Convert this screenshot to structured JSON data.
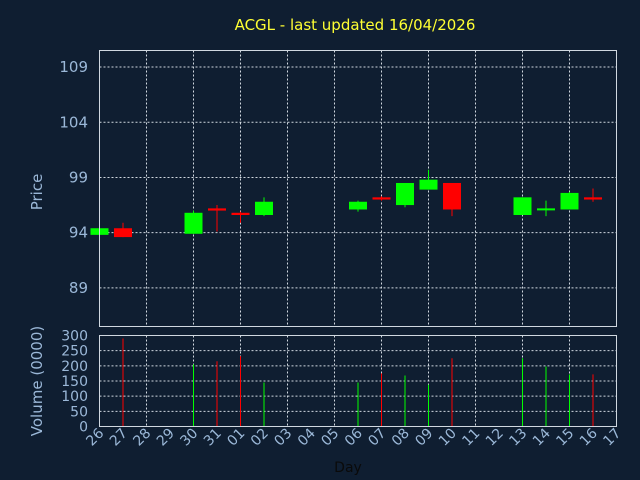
{
  "chart_data": [
    {
      "type": "candlestick",
      "title": "ACGL - last updated 16/04/2026",
      "ylabel": "Price",
      "ylim": [
        85.5,
        110.5
      ],
      "yticks": [
        89,
        94,
        99,
        104,
        109
      ],
      "grid": true,
      "up_color": "#00ff00",
      "down_color": "#ff0000",
      "series": [
        {
          "day": "26",
          "open": 93.8,
          "high": 94.4,
          "low": 93.6,
          "close": 94.4
        },
        {
          "day": "27",
          "open": 94.4,
          "high": 94.9,
          "low": 93.6,
          "close": 93.6
        },
        {
          "day": "30",
          "open": 93.9,
          "high": 96.0,
          "low": 93.9,
          "close": 95.8
        },
        {
          "day": "31",
          "open": 96.2,
          "high": 96.5,
          "low": 94.1,
          "close": 96.0
        },
        {
          "day": "01",
          "open": 95.8,
          "high": 95.9,
          "low": 94.9,
          "close": 95.6
        },
        {
          "day": "02",
          "open": 95.6,
          "high": 97.2,
          "low": 95.5,
          "close": 96.8
        },
        {
          "day": "06",
          "open": 96.1,
          "high": 96.9,
          "low": 95.9,
          "close": 96.8
        },
        {
          "day": "07",
          "open": 97.2,
          "high": 97.3,
          "low": 96.9,
          "close": 97.0
        },
        {
          "day": "08",
          "open": 96.5,
          "high": 98.5,
          "low": 96.3,
          "close": 98.5
        },
        {
          "day": "09",
          "open": 97.9,
          "high": 99.7,
          "low": 97.9,
          "close": 98.8
        },
        {
          "day": "10",
          "open": 98.5,
          "high": 98.5,
          "low": 95.5,
          "close": 96.1
        },
        {
          "day": "13",
          "open": 95.6,
          "high": 97.2,
          "low": 95.6,
          "close": 97.2
        },
        {
          "day": "14",
          "open": 96.2,
          "high": 96.9,
          "low": 95.5,
          "close": 96.2
        },
        {
          "day": "15",
          "open": 96.1,
          "high": 97.7,
          "low": 96.1,
          "close": 97.6
        },
        {
          "day": "16",
          "open": 97.2,
          "high": 98.0,
          "low": 96.8,
          "close": 97.0
        }
      ]
    },
    {
      "type": "bar",
      "ylabel": "Volume (0000)",
      "xlabel": "Day",
      "ylim": [
        0,
        300
      ],
      "yticks": [
        0,
        50,
        100,
        150,
        200,
        250,
        300
      ],
      "categories": [
        "26",
        "27",
        "28",
        "29",
        "30",
        "31",
        "01",
        "02",
        "03",
        "04",
        "05",
        "06",
        "07",
        "08",
        "09",
        "10",
        "11",
        "12",
        "13",
        "14",
        "15",
        "16",
        "17"
      ],
      "xtick_labels": [
        "26",
        "27",
        "28",
        "29",
        "30",
        "31",
        "01",
        "02",
        "03",
        "04",
        "05",
        "06",
        "07",
        "08",
        "09",
        "10",
        "11",
        "12",
        "13",
        "14",
        "15",
        "16",
        "17"
      ],
      "grid": true,
      "values": [
        {
          "day": "26",
          "volume": 0,
          "color": "#00ff00"
        },
        {
          "day": "27",
          "volume": 290,
          "color": "#ff0000"
        },
        {
          "day": "30",
          "volume": 205,
          "color": "#00ff00"
        },
        {
          "day": "31",
          "volume": 215,
          "color": "#ff0000"
        },
        {
          "day": "01",
          "volume": 232,
          "color": "#ff0000"
        },
        {
          "day": "02",
          "volume": 145,
          "color": "#00ff00"
        },
        {
          "day": "06",
          "volume": 145,
          "color": "#00ff00"
        },
        {
          "day": "07",
          "volume": 175,
          "color": "#ff0000"
        },
        {
          "day": "08",
          "volume": 168,
          "color": "#00ff00"
        },
        {
          "day": "09",
          "volume": 138,
          "color": "#00ff00"
        },
        {
          "day": "10",
          "volume": 225,
          "color": "#ff0000"
        },
        {
          "day": "13",
          "volume": 225,
          "color": "#00ff00"
        },
        {
          "day": "14",
          "volume": 198,
          "color": "#00ff00"
        },
        {
          "day": "15",
          "volume": 172,
          "color": "#00ff00"
        },
        {
          "day": "16",
          "volume": 172,
          "color": "#ff0000"
        }
      ]
    }
  ]
}
